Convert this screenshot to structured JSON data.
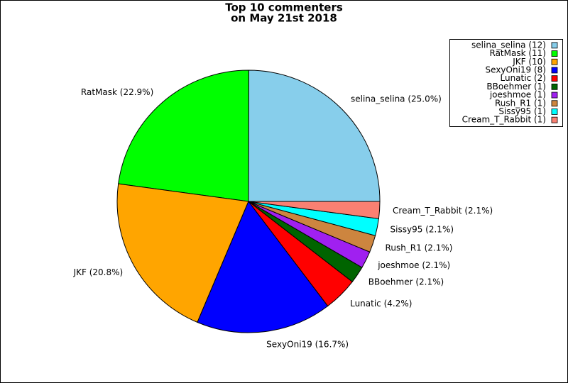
{
  "chart_data": {
    "type": "pie",
    "title": "Top 10 commenters",
    "subtitle": "on May 21st 2018",
    "categories": [
      "selina_selina",
      "RatMask",
      "JKF",
      "SexyOni19",
      "Lunatic",
      "BBoehmer",
      "joeshmoe",
      "Rush_R1",
      "Sissy95",
      "Cream_T_Rabbit"
    ],
    "values": [
      25.0,
      22.9,
      20.8,
      16.7,
      4.2,
      2.1,
      2.1,
      2.1,
      2.1,
      2.1
    ],
    "value_labels": [
      "selina_selina (25.0%)",
      "RatMask (22.9%)",
      "JKF (20.8%)",
      "SexyOni19 (16.7%)",
      "Lunatic (4.2%)",
      "BBoehmer (2.1%)",
      "joeshmoe (2.1%)",
      "Rush_R1 (2.1%)",
      "Sissy95 (2.1%)",
      "Cream_T_Rabbit (2.1%)"
    ],
    "legend_labels": [
      "selina_selina (12)",
      "RatMask (11)",
      "JKF (10)",
      "SexyOni19 (8)",
      "Lunatic (2)",
      "BBoehmer (1)",
      "joeshmoe (1)",
      "Rush_R1 (1)",
      "Sissy95 (1)",
      "Cream_T_Rabbit (1)"
    ],
    "colors": [
      "#87ceeb",
      "#00ff00",
      "#ffa500",
      "#0000ff",
      "#ff0000",
      "#006400",
      "#a020f0",
      "#cd853f",
      "#00ffff",
      "#fa8072"
    ],
    "legend_position": "upper right"
  }
}
